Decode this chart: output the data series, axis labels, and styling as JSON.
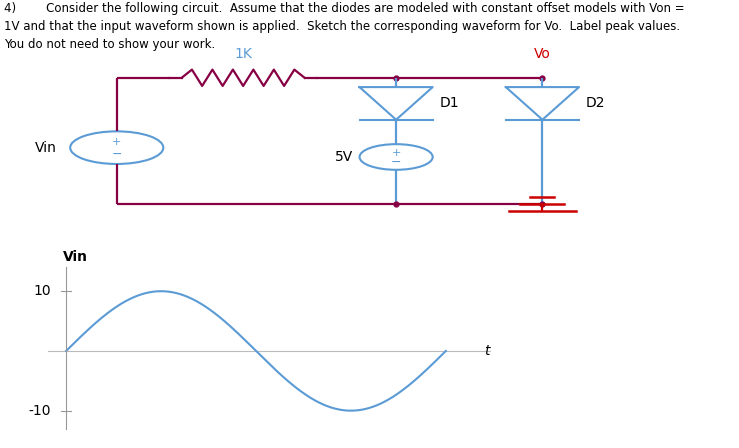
{
  "title_line1": "4)        Consider the following circuit.  Assume that the diodes are modeled with constant offset models with Von =",
  "title_line2": "1V and that the input waveform shown is applied.  Sketch the corresponding waveform for Vo.  Label peak values.",
  "title_line3": "You do not need to show your work.",
  "wire_color": "#880044",
  "blue_color": "#5B9BD5",
  "red_color": "#CC0000",
  "black_color": "#000000",
  "resistor_label": "1K",
  "voltage_source_label": "5V",
  "d1_label": "D1",
  "d2_label": "D2",
  "vo_label": "Vo",
  "vin_label": "Vin",
  "label_10": "10",
  "label_neg10": "-10",
  "t_label": "t",
  "ylabel_vin": "Vin"
}
